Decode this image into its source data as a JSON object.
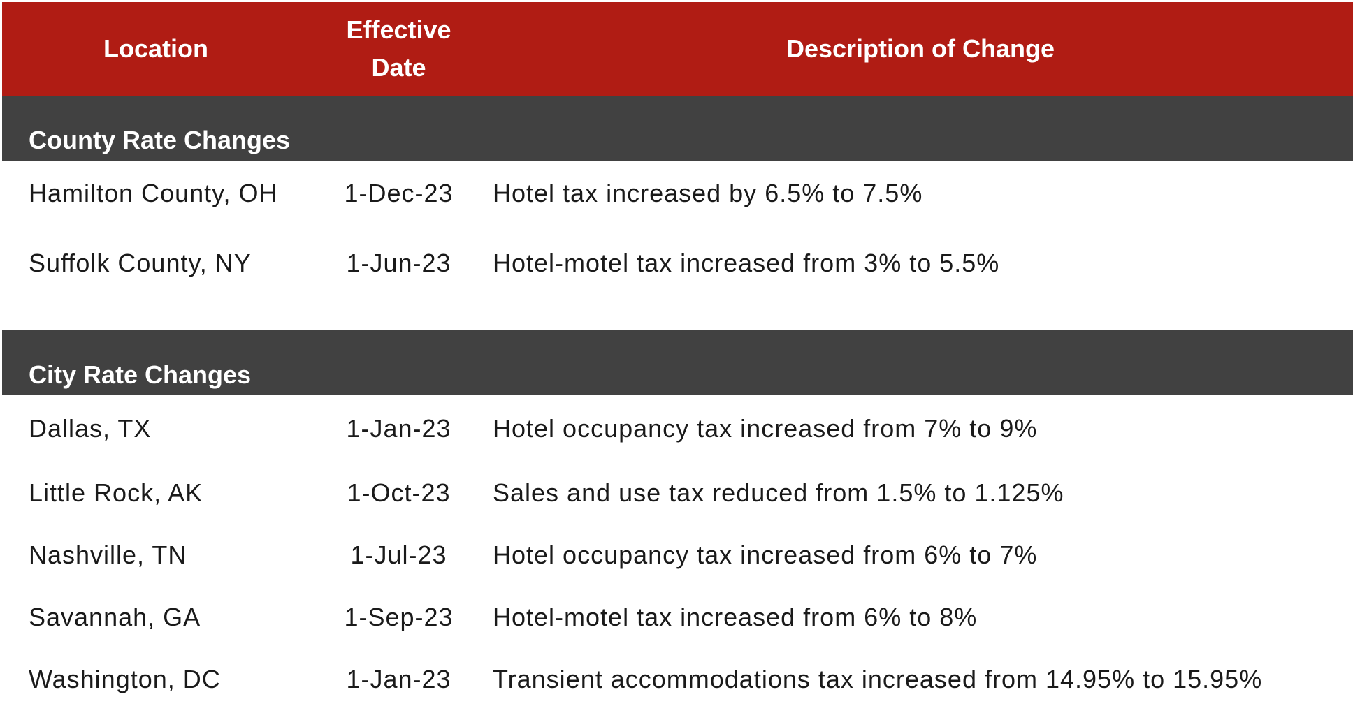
{
  "header": {
    "location": "Location",
    "effective_date_line1": "Effective",
    "effective_date_line2": "Date",
    "description": "Description of Change"
  },
  "sections": [
    {
      "title": "County Rate Changes",
      "rows": [
        {
          "location": "Hamilton County, OH",
          "date": "1-Dec-23",
          "description": "Hotel tax increased by 6.5% to 7.5%"
        },
        {
          "location": "Suffolk County, NY",
          "date": "1-Jun-23",
          "description": "Hotel-motel tax increased from 3% to 5.5%"
        }
      ]
    },
    {
      "title": "City Rate Changes",
      "rows": [
        {
          "location": "Dallas, TX",
          "date": "1-Jan-23",
          "description": "Hotel occupancy tax increased from 7% to 9%"
        },
        {
          "location": "Little Rock, AK",
          "date": "1-Oct-23",
          "description": "Sales and use tax reduced from 1.5% to 1.125%"
        },
        {
          "location": "Nashville, TN",
          "date": "1-Jul-23",
          "description": "Hotel occupancy tax increased from 6% to 7%"
        },
        {
          "location": "Savannah, GA",
          "date": "1-Sep-23",
          "description": "Hotel-motel tax increased from 6% to 8%"
        },
        {
          "location": "Washington, DC",
          "date": "1-Jan-23",
          "description": "Transient accommodations tax increased from 14.95% to 15.95%"
        }
      ]
    }
  ],
  "colors": {
    "header_bg": "#b01c14",
    "section_bg": "#414141",
    "text": "#1a1a1a"
  }
}
